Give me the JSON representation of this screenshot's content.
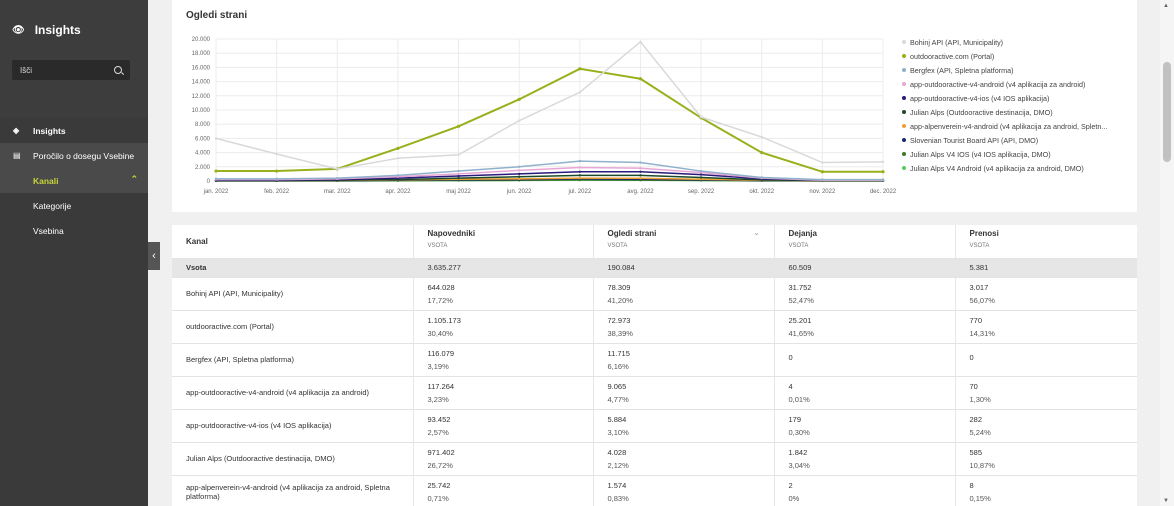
{
  "sidebar": {
    "brand": "Insights",
    "search_value": "Išči",
    "items": [
      {
        "label": "Insights"
      },
      {
        "label": "Poročilo o dosegu Vsebine"
      },
      {
        "label": "Kanali"
      },
      {
        "label": "Kategorije"
      },
      {
        "label": "Vsebina"
      }
    ]
  },
  "chart_data": {
    "type": "line",
    "title": "Ogledi strani",
    "categories": [
      "jan. 2022",
      "feb. 2022",
      "mar. 2022",
      "apr. 2022",
      "maj 2022",
      "jun. 2022",
      "jul. 2022",
      "avg. 2022",
      "sep. 2022",
      "okt. 2022",
      "nov. 2022",
      "dec. 2022"
    ],
    "y_ticks": [
      "20.000",
      "18.000",
      "16.000",
      "14.000",
      "12.000",
      "10.000",
      "8.000",
      "6.000",
      "4.000",
      "2.000",
      "0"
    ],
    "ylim": [
      0,
      20000
    ],
    "grid": true,
    "legend_position": "right",
    "series": [
      {
        "name": "Bohinj API (API, Municipality)",
        "color": "#d9d9d9",
        "values": [
          6000,
          3800,
          1700,
          3200,
          3700,
          8500,
          12500,
          19600,
          9000,
          6200,
          2600,
          2700
        ]
      },
      {
        "name": "outdooractive.com (Portal)",
        "color": "#9aaf1c",
        "values": [
          1400,
          1400,
          1700,
          4600,
          7700,
          11500,
          15800,
          14400,
          8900,
          4000,
          1300,
          1300
        ]
      },
      {
        "name": "Bergfex (API, Spletna platforma)",
        "color": "#8fb1cc",
        "values": [
          300,
          300,
          400,
          800,
          1400,
          2000,
          2800,
          2600,
          1400,
          500,
          200,
          200
        ]
      },
      {
        "name": "app-outdooractive-v4-android (v4 aplikacija za android)",
        "color": "#e8a6d4",
        "values": [
          200,
          200,
          300,
          600,
          1000,
          1500,
          1900,
          1800,
          1200,
          400,
          100,
          100
        ]
      },
      {
        "name": "app-outdooractive-v4-ios (v4 IOS aplikacija)",
        "color": "#2a1a7a",
        "values": [
          100,
          100,
          200,
          400,
          700,
          1000,
          1300,
          1300,
          900,
          300,
          100,
          100
        ]
      },
      {
        "name": "Julian Alps (Outdooractive destinacija, DMO)",
        "color": "#1a4a2a",
        "values": [
          50,
          50,
          100,
          200,
          400,
          600,
          800,
          800,
          500,
          150,
          50,
          50
        ]
      },
      {
        "name": "app-alpenverein-v4-android (v4 aplikacija za android, Spletn...",
        "color": "#f0a030",
        "values": [
          50,
          50,
          80,
          150,
          250,
          300,
          400,
          380,
          250,
          100,
          40,
          40
        ]
      },
      {
        "name": "Slovenian Tourist Board API (API, DMO)",
        "color": "#1a2a6a",
        "values": [
          20,
          20,
          50,
          100,
          150,
          200,
          300,
          250,
          150,
          60,
          20,
          20
        ]
      },
      {
        "name": "Julian Alps V4 IOS (v4 IOS aplikacija, DMO)",
        "color": "#3a7a2a",
        "values": [
          10,
          10,
          20,
          50,
          80,
          100,
          150,
          130,
          80,
          30,
          10,
          10
        ]
      },
      {
        "name": "Julian Alps V4 Android (v4 aplikacija za android, DMO)",
        "color": "#5acb5a",
        "values": [
          10,
          10,
          20,
          40,
          60,
          80,
          120,
          110,
          70,
          20,
          10,
          10
        ]
      }
    ]
  },
  "table": {
    "headers": [
      {
        "label": "Kanal",
        "sub": ""
      },
      {
        "label": "Napovedniki",
        "sub": "VSOTA"
      },
      {
        "label": "Ogledi strani",
        "sub": "VSOTA"
      },
      {
        "label": "Dejanja",
        "sub": "VSOTA"
      },
      {
        "label": "Prenosi",
        "sub": "VSOTA"
      }
    ],
    "sum": {
      "label": "Vsota",
      "values": [
        "3.635.277",
        "190.084",
        "60.509",
        "5.381"
      ]
    },
    "rows": [
      {
        "name": "Bohinj API (API, Municipality)",
        "cells": [
          [
            "644.028",
            "17,72%"
          ],
          [
            "78.309",
            "41,20%"
          ],
          [
            "31.752",
            "52,47%"
          ],
          [
            "3.017",
            "56,07%"
          ]
        ]
      },
      {
        "name": "outdooractive.com (Portal)",
        "cells": [
          [
            "1.105.173",
            "30,40%"
          ],
          [
            "72.973",
            "38,39%"
          ],
          [
            "25.201",
            "41,65%"
          ],
          [
            "770",
            "14,31%"
          ]
        ]
      },
      {
        "name": "Bergfex (API, Spletna platforma)",
        "cells": [
          [
            "116.079",
            "3,19%"
          ],
          [
            "11.715",
            "6,16%"
          ],
          [
            "0",
            ""
          ],
          [
            "0",
            ""
          ]
        ]
      },
      {
        "name": "app-outdooractive-v4-android (v4 aplikacija za android)",
        "cells": [
          [
            "117.264",
            "3,23%"
          ],
          [
            "9.065",
            "4,77%"
          ],
          [
            "4",
            "0,01%"
          ],
          [
            "70",
            "1,30%"
          ]
        ]
      },
      {
        "name": "app-outdooractive-v4-ios (v4 IOS aplikacija)",
        "cells": [
          [
            "93.452",
            "2,57%"
          ],
          [
            "5.884",
            "3,10%"
          ],
          [
            "179",
            "0,30%"
          ],
          [
            "282",
            "5,24%"
          ]
        ]
      },
      {
        "name": "Julian Alps (Outdooractive destinacija, DMO)",
        "cells": [
          [
            "971.402",
            "26,72%"
          ],
          [
            "4.028",
            "2,12%"
          ],
          [
            "1.842",
            "3,04%"
          ],
          [
            "585",
            "10,87%"
          ]
        ]
      },
      {
        "name": "app-alpenverein-v4-android (v4 aplikacija za android, Spletna platforma)",
        "cells": [
          [
            "25.742",
            "0,71%"
          ],
          [
            "1.574",
            "0,83%"
          ],
          [
            "2",
            "0%"
          ],
          [
            "8",
            "0,15%"
          ]
        ]
      }
    ]
  },
  "colors": {
    "accent": "#c8d53a",
    "sidebar_bg": "#3a3a3a"
  }
}
